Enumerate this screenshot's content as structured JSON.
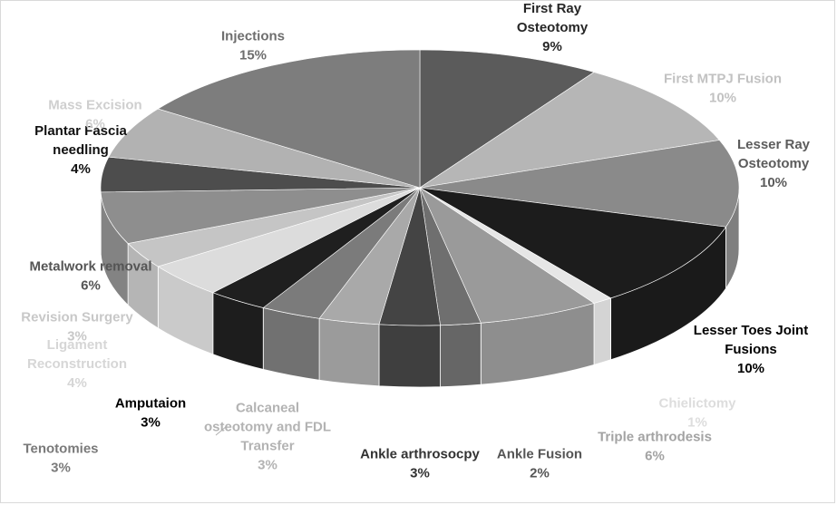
{
  "chart_data": {
    "type": "pie",
    "title": "",
    "legend": "none",
    "style": "3d",
    "slices": [
      {
        "label": "First Ray\nOsteotomy",
        "percent": "9%",
        "value": 9,
        "color": "#5b5b5b",
        "label_color": "#262626"
      },
      {
        "label": "First MTPJ Fusion",
        "percent": "10%",
        "value": 10,
        "color": "#b6b6b6",
        "label_color": "#c2c2c2"
      },
      {
        "label": "Lesser Ray\nOsteotomy",
        "percent": "10%",
        "value": 10,
        "color": "#8a8a8a",
        "label_color": "#5c5c5c"
      },
      {
        "label": "Lesser Toes Joint\nFusions",
        "percent": "10%",
        "value": 10,
        "color": "#1c1c1c",
        "label_color": "#000000"
      },
      {
        "label": "Chielictomy",
        "percent": "1%",
        "value": 1,
        "color": "#e6e6e6",
        "label_color": "#dddddd"
      },
      {
        "label": "Triple arthrodesis",
        "percent": "6%",
        "value": 6,
        "color": "#9a9a9a",
        "label_color": "#a3a3a3"
      },
      {
        "label": "Ankle Fusion",
        "percent": "2%",
        "value": 2,
        "color": "#6f6f6f",
        "label_color": "#555555"
      },
      {
        "label": "Ankle arthrosocpy",
        "percent": "3%",
        "value": 3,
        "color": "#444444",
        "label_color": "#333333"
      },
      {
        "label": "Calcaneal\nosteotomy and FDL\nTransfer",
        "percent": "3%",
        "value": 3,
        "color": "#a9a9a9",
        "label_color": "#b3b3b3"
      },
      {
        "label": "Tenotomies",
        "percent": "3%",
        "value": 3,
        "color": "#7b7b7b",
        "label_color": "#7a7a7a"
      },
      {
        "label": "Amputaion",
        "percent": "3%",
        "value": 3,
        "color": "#1f1f1f",
        "label_color": "#000000"
      },
      {
        "label": "Ligament\nReconstruction",
        "percent": "4%",
        "value": 4,
        "color": "#dcdcdc",
        "label_color": "#d6d6d6"
      },
      {
        "label": "Revision Surgery",
        "percent": "3%",
        "value": 3,
        "color": "#c5c5c5",
        "label_color": "#c8c8c8"
      },
      {
        "label": "Metalwork removal",
        "percent": "6%",
        "value": 6,
        "color": "#8e8e8e",
        "label_color": "#555555"
      },
      {
        "label": "Plantar Fascia\nneedling",
        "percent": "4%",
        "value": 4,
        "color": "#4d4d4d",
        "label_color": "#111111"
      },
      {
        "label": "Mass Excision",
        "percent": "6%",
        "value": 6,
        "color": "#b2b2b2",
        "label_color": "#cfcfcf"
      },
      {
        "label": "Injections",
        "percent": "15%",
        "value": 15,
        "color": "#7d7d7d",
        "label_color": "#6e6e6e"
      }
    ]
  }
}
